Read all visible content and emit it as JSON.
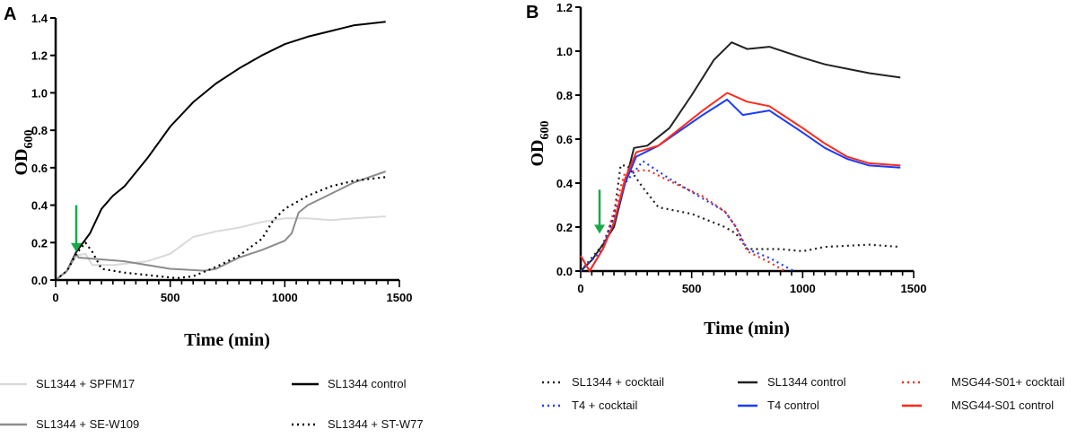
{
  "chart_data": [
    {
      "type": "line",
      "panel_label": "A",
      "xlabel": "Time (min)",
      "ylabel_main": "OD",
      "ylabel_sub": "600",
      "xlim": [
        0,
        1500
      ],
      "ylim": [
        0,
        1.4
      ],
      "xticks": [
        0,
        500,
        1000,
        1500
      ],
      "xtick_labels": [
        "0",
        "500",
        "1000",
        "1500"
      ],
      "yticks": [
        0,
        0.2,
        0.4,
        0.6,
        0.8,
        1.0,
        1.2,
        1.4
      ],
      "ytick_labels": [
        "0.0",
        "0.2",
        "0.4",
        "0.6",
        "0.8",
        "1.0",
        "1.2",
        "1.4"
      ],
      "minor_xtick_step": 50,
      "grid": false,
      "legend_placement": "bottom",
      "annotation": {
        "type": "arrow",
        "color": "#1aa84a",
        "x": 90,
        "y_from": 0.4,
        "y_to": 0.15
      },
      "series": [
        {
          "name": "SL1344 + SPFM17",
          "color": "#d9d9d9",
          "dash": "solid",
          "points": [
            [
              0,
              0
            ],
            [
              50,
              0.05
            ],
            [
              90,
              0.13
            ],
            [
              130,
              0.14
            ],
            [
              160,
              0.08
            ],
            [
              250,
              0.08
            ],
            [
              400,
              0.1
            ],
            [
              500,
              0.14
            ],
            [
              600,
              0.23
            ],
            [
              700,
              0.26
            ],
            [
              800,
              0.28
            ],
            [
              900,
              0.31
            ],
            [
              1000,
              0.33
            ],
            [
              1100,
              0.33
            ],
            [
              1200,
              0.32
            ],
            [
              1300,
              0.33
            ],
            [
              1440,
              0.34
            ]
          ]
        },
        {
          "name": "SL1344 control",
          "color": "#000000",
          "dash": "solid",
          "points": [
            [
              0,
              0
            ],
            [
              50,
              0.05
            ],
            [
              90,
              0.15
            ],
            [
              150,
              0.25
            ],
            [
              200,
              0.38
            ],
            [
              250,
              0.45
            ],
            [
              300,
              0.5
            ],
            [
              400,
              0.65
            ],
            [
              500,
              0.82
            ],
            [
              600,
              0.95
            ],
            [
              700,
              1.05
            ],
            [
              800,
              1.13
            ],
            [
              900,
              1.2
            ],
            [
              1000,
              1.26
            ],
            [
              1100,
              1.3
            ],
            [
              1200,
              1.33
            ],
            [
              1300,
              1.36
            ],
            [
              1440,
              1.38
            ]
          ]
        },
        {
          "name": "SL1344 + SE-W109",
          "color": "#8c8c8c",
          "dash": "solid",
          "points": [
            [
              0,
              0
            ],
            [
              50,
              0.05
            ],
            [
              90,
              0.14
            ],
            [
              100,
              0.12
            ],
            [
              300,
              0.1
            ],
            [
              500,
              0.06
            ],
            [
              650,
              0.05
            ],
            [
              700,
              0.06
            ],
            [
              800,
              0.12
            ],
            [
              900,
              0.16
            ],
            [
              1000,
              0.21
            ],
            [
              1030,
              0.25
            ],
            [
              1060,
              0.36
            ],
            [
              1100,
              0.4
            ],
            [
              1200,
              0.46
            ],
            [
              1300,
              0.52
            ],
            [
              1440,
              0.58
            ]
          ]
        },
        {
          "name": "SL1344 + ST-W77",
          "color": "#000000",
          "dash": "dotted",
          "points": [
            [
              0,
              0
            ],
            [
              50,
              0.05
            ],
            [
              90,
              0.14
            ],
            [
              130,
              0.2
            ],
            [
              160,
              0.15
            ],
            [
              200,
              0.06
            ],
            [
              300,
              0.04
            ],
            [
              450,
              0.02
            ],
            [
              530,
              0.01
            ],
            [
              600,
              0.02
            ],
            [
              700,
              0.07
            ],
            [
              800,
              0.13
            ],
            [
              900,
              0.22
            ],
            [
              950,
              0.32
            ],
            [
              1000,
              0.38
            ],
            [
              1100,
              0.45
            ],
            [
              1200,
              0.5
            ],
            [
              1300,
              0.53
            ],
            [
              1440,
              0.55
            ]
          ]
        }
      ]
    },
    {
      "type": "line",
      "panel_label": "B",
      "xlabel": "Time (min)",
      "ylabel_main": "OD",
      "ylabel_sub": "600",
      "xlim": [
        0,
        1500
      ],
      "ylim": [
        0,
        1.2
      ],
      "xticks": [
        0,
        500,
        1000,
        1500
      ],
      "xtick_labels": [
        "0",
        "500",
        "1000",
        "1500"
      ],
      "yticks": [
        0,
        0.2,
        0.4,
        0.6,
        0.8,
        1.0,
        1.2
      ],
      "ytick_labels": [
        "0.0",
        "0.2",
        "0.4",
        "0.6",
        "0.8",
        "1.0",
        "1.2"
      ],
      "minor_xtick_step": 50,
      "grid": false,
      "legend_placement": "bottom",
      "annotation": {
        "type": "arrow",
        "color": "#1aa84a",
        "x": 85,
        "y_from": 0.37,
        "y_to": 0.17
      },
      "series": [
        {
          "name": "SL1344 + cocktail",
          "color": "#222222",
          "dash": "dotted",
          "points": [
            [
              0,
              0
            ],
            [
              100,
              0.12
            ],
            [
              150,
              0.25
            ],
            [
              180,
              0.48
            ],
            [
              210,
              0.48
            ],
            [
              280,
              0.38
            ],
            [
              350,
              0.29
            ],
            [
              500,
              0.26
            ],
            [
              650,
              0.2
            ],
            [
              700,
              0.17
            ],
            [
              750,
              0.1
            ],
            [
              800,
              0.1
            ],
            [
              900,
              0.1
            ],
            [
              1000,
              0.09
            ],
            [
              1100,
              0.11
            ],
            [
              1300,
              0.12
            ],
            [
              1440,
              0.11
            ]
          ]
        },
        {
          "name": "SL1344 control",
          "color": "#222222",
          "dash": "solid",
          "points": [
            [
              0,
              0
            ],
            [
              50,
              0.05
            ],
            [
              100,
              0.12
            ],
            [
              150,
              0.2
            ],
            [
              200,
              0.4
            ],
            [
              240,
              0.56
            ],
            [
              300,
              0.57
            ],
            [
              400,
              0.65
            ],
            [
              500,
              0.8
            ],
            [
              600,
              0.96
            ],
            [
              680,
              1.04
            ],
            [
              750,
              1.01
            ],
            [
              850,
              1.02
            ],
            [
              1000,
              0.97
            ],
            [
              1100,
              0.94
            ],
            [
              1200,
              0.92
            ],
            [
              1300,
              0.9
            ],
            [
              1440,
              0.88
            ]
          ]
        },
        {
          "name": "MSG44-S01+ cocktail",
          "color": "#ff2a1a",
          "dash": "dotted",
          "points": [
            [
              0,
              0
            ],
            [
              100,
              0.1
            ],
            [
              200,
              0.45
            ],
            [
              300,
              0.46
            ],
            [
              400,
              0.41
            ],
            [
              550,
              0.34
            ],
            [
              650,
              0.27
            ],
            [
              700,
              0.2
            ],
            [
              750,
              0.09
            ],
            [
              850,
              0.04
            ],
            [
              920,
              0
            ]
          ]
        },
        {
          "name": "T4 + cocktail",
          "color": "#1a3cff",
          "dash": "dotted",
          "points": [
            [
              0,
              0
            ],
            [
              100,
              0.1
            ],
            [
              200,
              0.4
            ],
            [
              280,
              0.5
            ],
            [
              400,
              0.42
            ],
            [
              550,
              0.33
            ],
            [
              650,
              0.27
            ],
            [
              700,
              0.2
            ],
            [
              750,
              0.1
            ],
            [
              850,
              0.06
            ],
            [
              960,
              0
            ]
          ]
        },
        {
          "name": "T4 control",
          "color": "#1a3cff",
          "dash": "solid",
          "points": [
            [
              0,
              0.07
            ],
            [
              40,
              0
            ],
            [
              100,
              0.1
            ],
            [
              150,
              0.22
            ],
            [
              200,
              0.4
            ],
            [
              250,
              0.52
            ],
            [
              350,
              0.57
            ],
            [
              450,
              0.64
            ],
            [
              550,
              0.71
            ],
            [
              660,
              0.78
            ],
            [
              730,
              0.71
            ],
            [
              850,
              0.73
            ],
            [
              1000,
              0.63
            ],
            [
              1100,
              0.56
            ],
            [
              1200,
              0.51
            ],
            [
              1300,
              0.48
            ],
            [
              1440,
              0.47
            ]
          ]
        },
        {
          "name": "MSG44-S01 control",
          "color": "#ff2a1a",
          "dash": "solid",
          "points": [
            [
              0,
              0.07
            ],
            [
              40,
              0
            ],
            [
              100,
              0.1
            ],
            [
              150,
              0.22
            ],
            [
              200,
              0.42
            ],
            [
              250,
              0.54
            ],
            [
              350,
              0.57
            ],
            [
              450,
              0.65
            ],
            [
              550,
              0.73
            ],
            [
              660,
              0.81
            ],
            [
              750,
              0.77
            ],
            [
              850,
              0.75
            ],
            [
              1000,
              0.65
            ],
            [
              1100,
              0.58
            ],
            [
              1200,
              0.52
            ],
            [
              1300,
              0.49
            ],
            [
              1440,
              0.48
            ]
          ]
        }
      ]
    }
  ]
}
